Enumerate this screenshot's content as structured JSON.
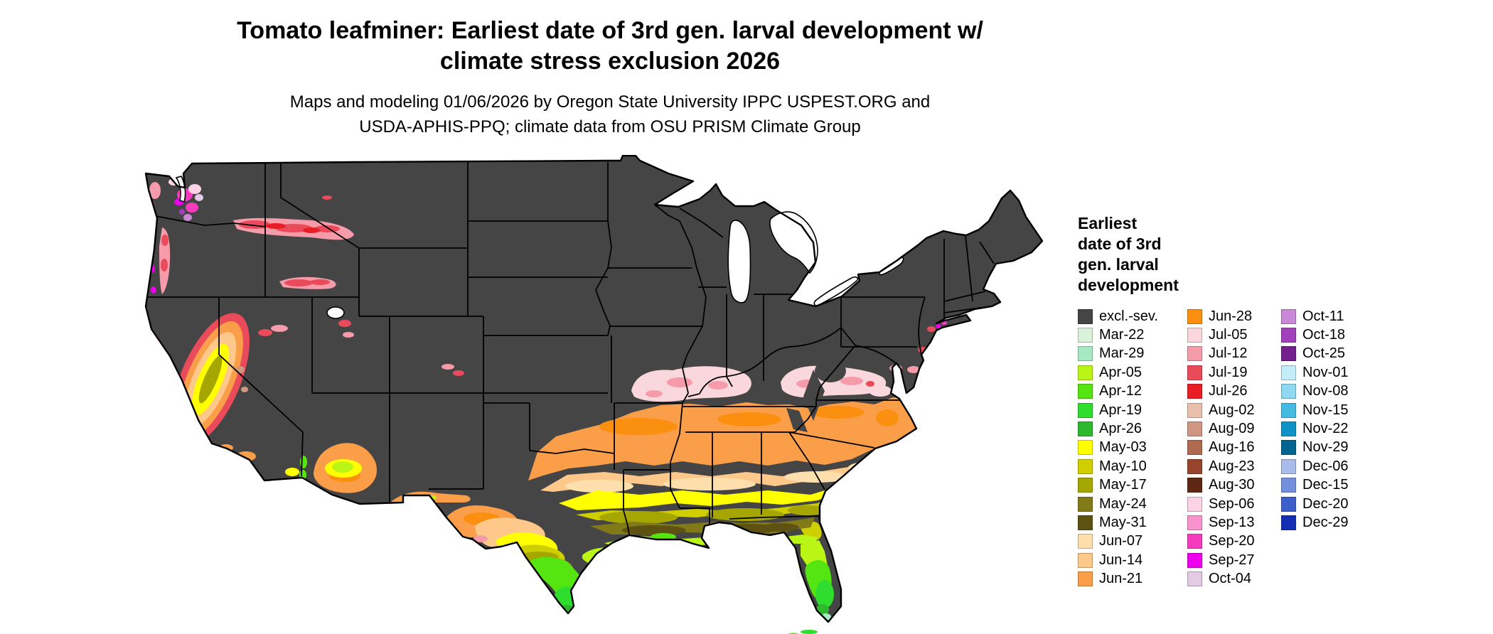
{
  "title": {
    "line1": "Tomato leafminer: Earliest date of 3rd gen. larval development w/",
    "line2": "climate stress exclusion 2026"
  },
  "subtitle": {
    "line1": "Maps and modeling 01/06/2026 by Oregon State University IPPC USPEST.ORG and",
    "line2": "USDA-APHIS-PPQ; climate data from OSU PRISM Climate Group"
  },
  "legend": {
    "title_lines": [
      "Earliest",
      "date of 3rd",
      "gen. larval",
      "development"
    ],
    "columns": [
      [
        {
          "label": "excl.-sev.",
          "color": "#454545"
        },
        {
          "label": "Mar-22",
          "color": "#d9f2d9"
        },
        {
          "label": "Mar-29",
          "color": "#a6e9c3"
        },
        {
          "label": "Apr-05",
          "color": "#bbf516"
        },
        {
          "label": "Apr-12",
          "color": "#55e611"
        },
        {
          "label": "Apr-19",
          "color": "#2edd2e"
        },
        {
          "label": "Apr-26",
          "color": "#2eb82e"
        },
        {
          "label": "May-03",
          "color": "#ffff00"
        },
        {
          "label": "May-10",
          "color": "#cfcf00"
        },
        {
          "label": "May-17",
          "color": "#a6a600"
        },
        {
          "label": "May-24",
          "color": "#827a19"
        },
        {
          "label": "May-31",
          "color": "#5e5213"
        },
        {
          "label": "Jun-07",
          "color": "#fddfad"
        },
        {
          "label": "Jun-14",
          "color": "#fdc88a"
        },
        {
          "label": "Jun-21",
          "color": "#fb9e4a"
        }
      ],
      [
        {
          "label": "Jun-28",
          "color": "#fb9010"
        },
        {
          "label": "Jul-05",
          "color": "#fad7dd"
        },
        {
          "label": "Jul-12",
          "color": "#f59ba9"
        },
        {
          "label": "Jul-19",
          "color": "#ea4b5b"
        },
        {
          "label": "Jul-26",
          "color": "#e81e24"
        },
        {
          "label": "Aug-02",
          "color": "#e8c0ac"
        },
        {
          "label": "Aug-09",
          "color": "#cf9681"
        },
        {
          "label": "Aug-16",
          "color": "#b06a52"
        },
        {
          "label": "Aug-23",
          "color": "#94452c"
        },
        {
          "label": "Aug-30",
          "color": "#5e2814"
        },
        {
          "label": "Sep-06",
          "color": "#fbd3e4"
        },
        {
          "label": "Sep-13",
          "color": "#f993cd"
        },
        {
          "label": "Sep-20",
          "color": "#f73bbf"
        },
        {
          "label": "Sep-27",
          "color": "#ee00ee"
        },
        {
          "label": "Oct-04",
          "color": "#e3cbe3"
        }
      ],
      [
        {
          "label": "Oct-11",
          "color": "#c989d6"
        },
        {
          "label": "Oct-18",
          "color": "#a241bb"
        },
        {
          "label": "Oct-25",
          "color": "#731f8e"
        },
        {
          "label": "Nov-01",
          "color": "#c5ecf9"
        },
        {
          "label": "Nov-08",
          "color": "#8ed8f2"
        },
        {
          "label": "Nov-15",
          "color": "#45bbe4"
        },
        {
          "label": "Nov-22",
          "color": "#0f93c7"
        },
        {
          "label": "Nov-29",
          "color": "#03658f"
        },
        {
          "label": "Dec-06",
          "color": "#aabce9"
        },
        {
          "label": "Dec-15",
          "color": "#7490dc"
        },
        {
          "label": "Dec-20",
          "color": "#3c5fc9"
        },
        {
          "label": "Dec-29",
          "color": "#1330b4"
        }
      ]
    ]
  }
}
